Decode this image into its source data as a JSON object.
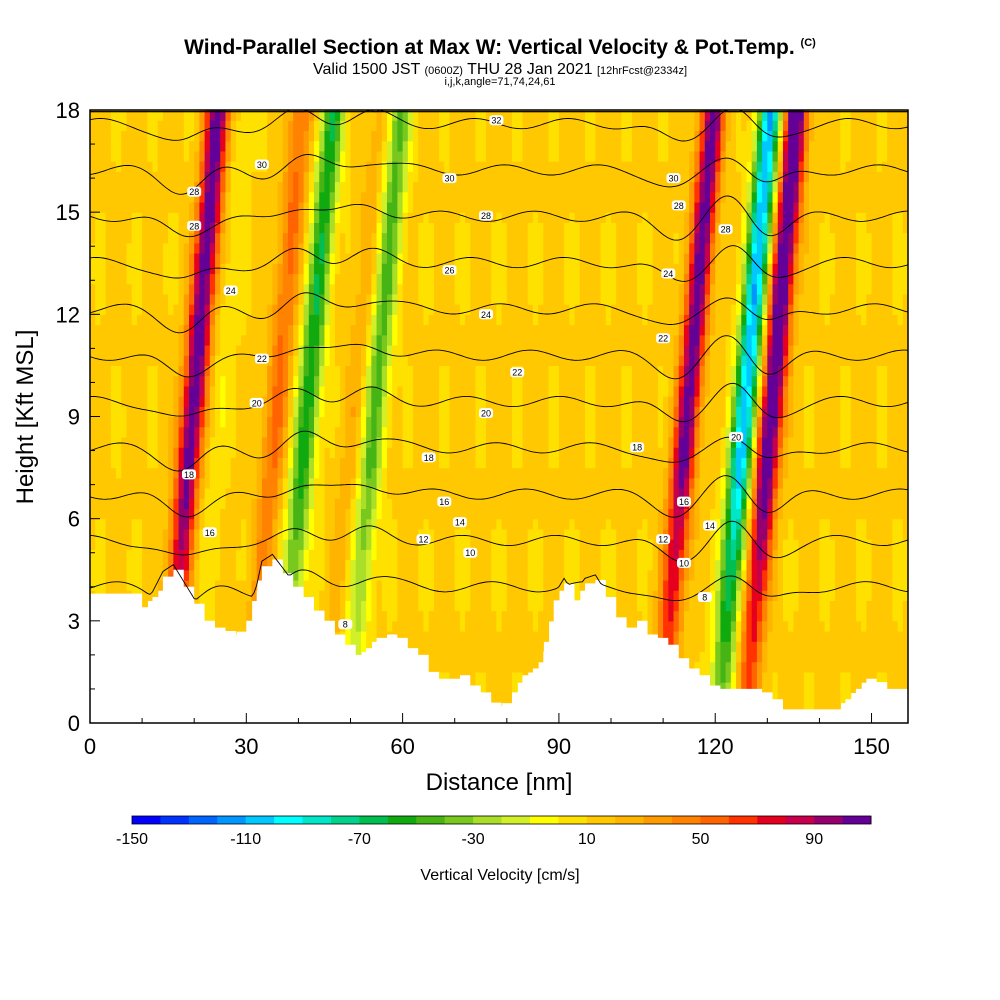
{
  "chart_data": {
    "type": "heatmap",
    "title": "Wind-Parallel Section at Max W: Vertical Velocity & Pot.Temp.",
    "title_mark": "(C)",
    "subtitle_main": "Valid 1500 JST",
    "subtitle_z": "(0600Z)",
    "subtitle_date": "THU 28 Jan 2021",
    "subtitle_fcst": "[12hrFcst@2334z]",
    "subtitle2": "i,j,k,angle=71,74,24,61",
    "xlabel": "Distance [nm]",
    "ylabel": "Height [Kft MSL]",
    "xlim": [
      0,
      157
    ],
    "ylim": [
      0,
      18
    ],
    "x_ticks": [
      0,
      30,
      60,
      90,
      120,
      150
    ],
    "y_ticks": [
      0,
      3,
      6,
      9,
      12,
      15,
      18
    ],
    "colorbar": {
      "label": "Vertical Velocity [cm/s]",
      "range": [
        -150,
        110
      ],
      "step": 10,
      "tick_values": [
        -150,
        -110,
        -70,
        -30,
        10,
        50,
        90
      ],
      "tick_labels": [
        "-150",
        "-110",
        "-70",
        "-30",
        "10",
        "50",
        "90"
      ],
      "colors": [
        "#0000ff",
        "#0032ff",
        "#0064ff",
        "#0096ff",
        "#00c8ff",
        "#00ffff",
        "#00e6c8",
        "#00d28c",
        "#00be50",
        "#10aa10",
        "#46b414",
        "#78c81e",
        "#aade28",
        "#d2f028",
        "#ffff00",
        "#ffe100",
        "#ffc800",
        "#ffb400",
        "#ff9b00",
        "#ff8200",
        "#ff6400",
        "#ff3200",
        "#e6001e",
        "#c8004b",
        "#96006e",
        "#640096"
      ]
    },
    "updrafts": [
      {
        "x": 18,
        "w": 100
      },
      {
        "x": 34,
        "w": 40
      },
      {
        "x": 49,
        "w": 15
      },
      {
        "x": 113,
        "w": 95
      },
      {
        "x": 129,
        "w": 110
      }
    ],
    "downdrafts": [
      {
        "x": 23,
        "w": -10
      },
      {
        "x": 40,
        "w": -70
      },
      {
        "x": 53,
        "w": -55
      },
      {
        "x": 124,
        "w": -120
      }
    ],
    "theta_contours": [
      6,
      8,
      10,
      12,
      14,
      16,
      18,
      20,
      22,
      24,
      26,
      28,
      30,
      32
    ],
    "theta_labels": [
      {
        "text": "32",
        "x": 78,
        "y": 17.7
      },
      {
        "text": "30",
        "x": 33,
        "y": 16.4
      },
      {
        "text": "30",
        "x": 69,
        "y": 16.0
      },
      {
        "text": "30",
        "x": 112,
        "y": 16.0
      },
      {
        "text": "28",
        "x": 20,
        "y": 15.6
      },
      {
        "text": "28",
        "x": 20,
        "y": 14.6
      },
      {
        "text": "28",
        "x": 76,
        "y": 14.9
      },
      {
        "text": "28",
        "x": 113,
        "y": 15.2
      },
      {
        "text": "28",
        "x": 122,
        "y": 14.5
      },
      {
        "text": "26",
        "x": 69,
        "y": 13.3
      },
      {
        "text": "24",
        "x": 27,
        "y": 12.7
      },
      {
        "text": "24",
        "x": 76,
        "y": 12.0
      },
      {
        "text": "24",
        "x": 111,
        "y": 13.2
      },
      {
        "text": "22",
        "x": 33,
        "y": 10.7
      },
      {
        "text": "22",
        "x": 82,
        "y": 10.3
      },
      {
        "text": "22",
        "x": 110,
        "y": 11.3
      },
      {
        "text": "20",
        "x": 32,
        "y": 9.4
      },
      {
        "text": "20",
        "x": 76,
        "y": 9.1
      },
      {
        "text": "20",
        "x": 124,
        "y": 8.4
      },
      {
        "text": "18",
        "x": 19,
        "y": 7.3
      },
      {
        "text": "18",
        "x": 65,
        "y": 7.8
      },
      {
        "text": "18",
        "x": 105,
        "y": 8.1
      },
      {
        "text": "16",
        "x": 23,
        "y": 5.6
      },
      {
        "text": "16",
        "x": 68,
        "y": 6.5
      },
      {
        "text": "16",
        "x": 114,
        "y": 6.5
      },
      {
        "text": "14",
        "x": 71,
        "y": 5.9
      },
      {
        "text": "14",
        "x": 119,
        "y": 5.8
      },
      {
        "text": "12",
        "x": 64,
        "y": 5.4
      },
      {
        "text": "12",
        "x": 110,
        "y": 5.4
      },
      {
        "text": "10",
        "x": 73,
        "y": 5.0
      },
      {
        "text": "10",
        "x": 114,
        "y": 4.7
      },
      {
        "text": "8",
        "x": 118,
        "y": 3.7
      },
      {
        "text": "8",
        "x": 49,
        "y": 2.9
      }
    ],
    "terrain": {
      "x": [
        0,
        8,
        10,
        12,
        14,
        16,
        18,
        20,
        22,
        24,
        26,
        28,
        30,
        32,
        33,
        35,
        37,
        39,
        41,
        43,
        45,
        47,
        49,
        51,
        53,
        55,
        57,
        59,
        61,
        63,
        65,
        67,
        69,
        71,
        73,
        75,
        77,
        79,
        81,
        83,
        85,
        87,
        89,
        91,
        93,
        95,
        97,
        99,
        101,
        103,
        105,
        107,
        109,
        111,
        113,
        115,
        117,
        119,
        121,
        123,
        125,
        127,
        129,
        131,
        133,
        135,
        137,
        139,
        141,
        143,
        145,
        147,
        149,
        151,
        153,
        155,
        157
      ],
      "h": [
        3.8,
        3.8,
        3.4,
        3.7,
        4.3,
        4.5,
        4.0,
        3.5,
        3.0,
        2.8,
        2.7,
        2.6,
        3.0,
        3.9,
        4.6,
        4.8,
        4.4,
        4.0,
        3.7,
        3.3,
        3.0,
        2.6,
        2.3,
        2.0,
        2.2,
        2.5,
        2.6,
        2.5,
        2.2,
        2.0,
        1.5,
        1.3,
        1.3,
        1.4,
        1.1,
        0.9,
        0.6,
        0.5,
        0.9,
        1.4,
        1.6,
        2.1,
        3.6,
        4.1,
        3.6,
        4.1,
        4.2,
        3.7,
        3.1,
        2.8,
        3.0,
        2.6,
        2.5,
        2.3,
        1.9,
        1.6,
        1.4,
        1.1,
        1.0,
        1.0,
        1.0,
        1.0,
        0.9,
        0.7,
        0.4,
        0.4,
        0.4,
        0.4,
        0.4,
        0.4,
        0.7,
        1.0,
        1.3,
        1.2,
        1.0,
        1.0,
        1.0
      ]
    }
  }
}
